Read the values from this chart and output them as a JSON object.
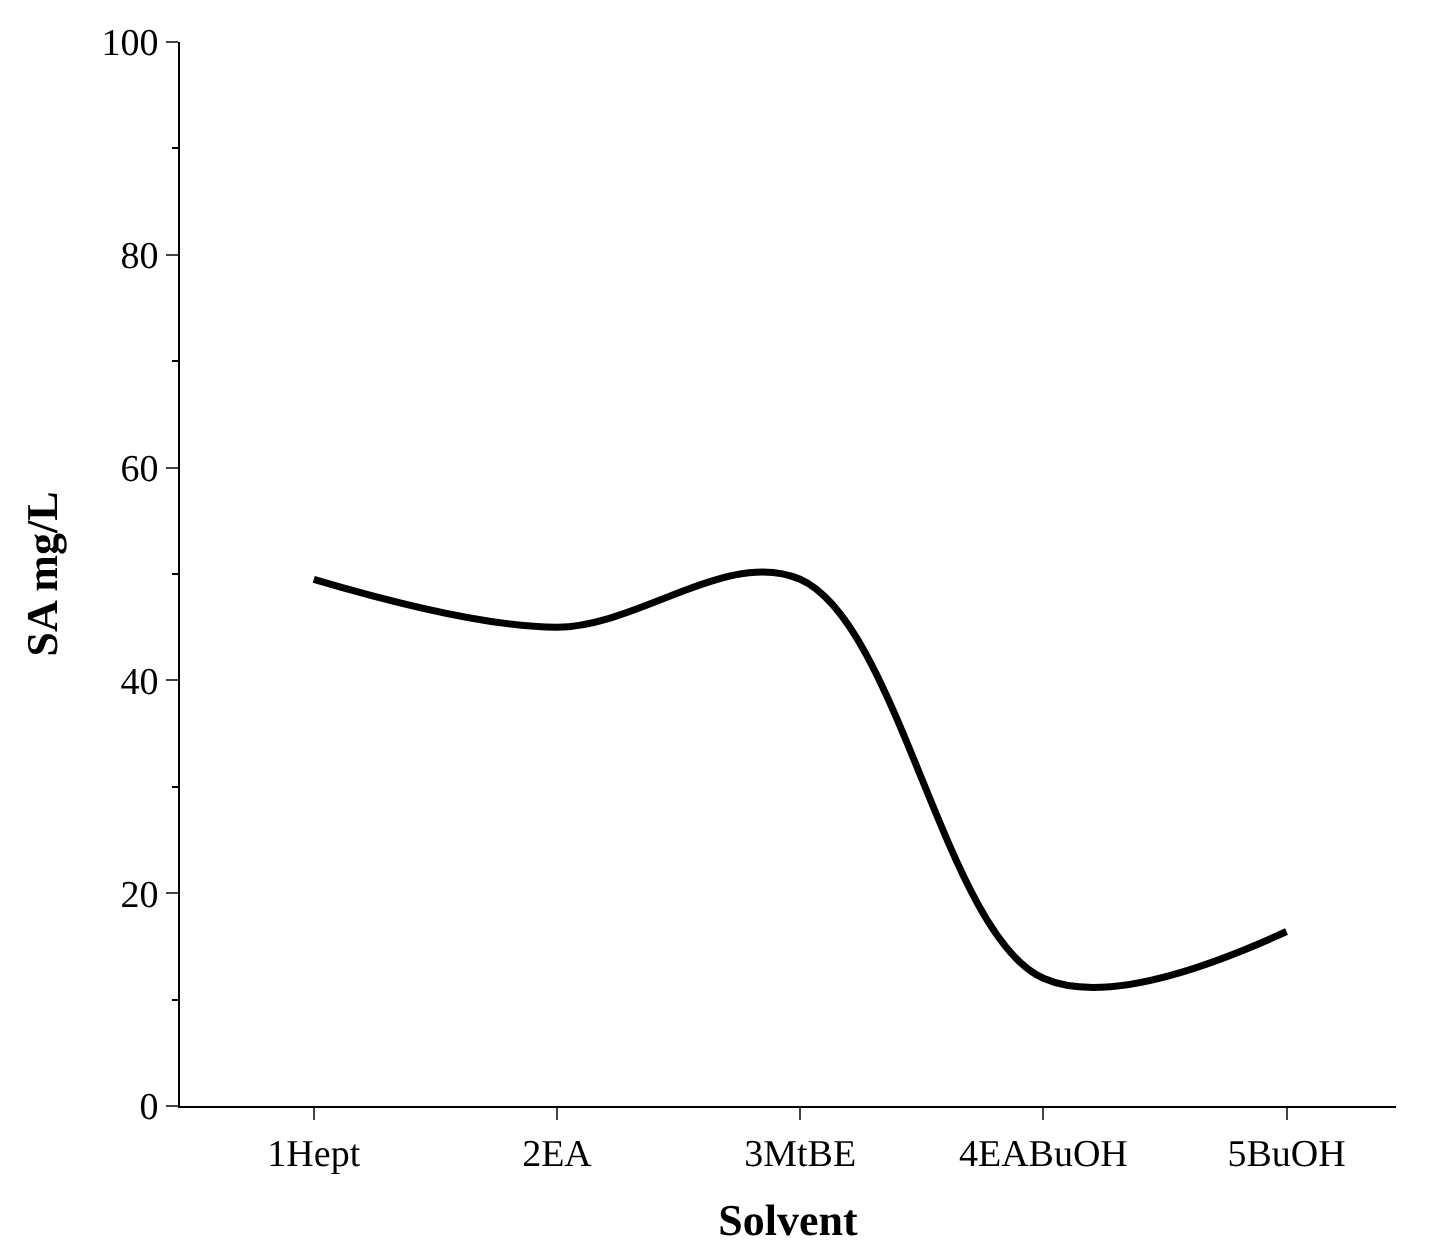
{
  "chart_data": {
    "type": "line",
    "xlabel": "Solvent",
    "ylabel": "SA mg/L",
    "categories": [
      "1Hept",
      "2EA",
      "3MtBE",
      "4EABuOH",
      "5BuOH"
    ],
    "series": [
      {
        "color": "#000000",
        "values": [
          49.5,
          45,
          49.5,
          12,
          16.4
        ]
      }
    ],
    "ylim": [
      0,
      100
    ],
    "yticks": [
      0,
      20,
      40,
      60,
      80,
      100
    ],
    "legend": false,
    "marker": "none",
    "line_style": "solid"
  }
}
